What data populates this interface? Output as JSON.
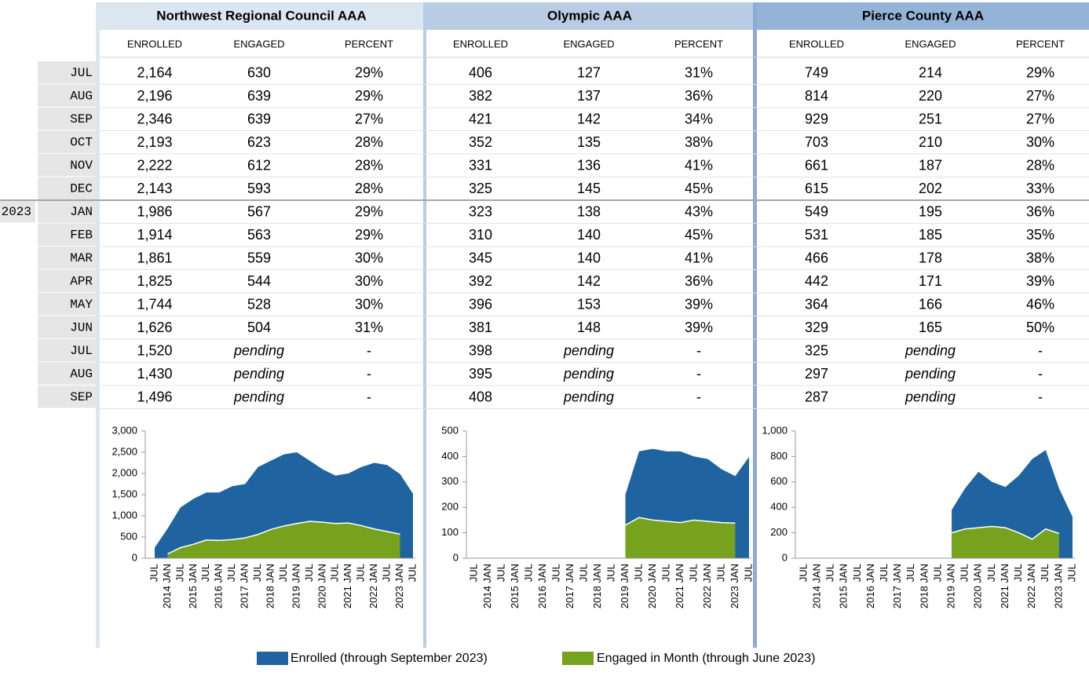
{
  "table": {
    "year": "2023",
    "months": [
      "JUL",
      "AUG",
      "SEP",
      "OCT",
      "NOV",
      "DEC",
      "JAN",
      "FEB",
      "MAR",
      "APR",
      "MAY",
      "JUN",
      "JUL",
      "AUG",
      "SEP"
    ],
    "panels": [
      {
        "name": "Northwest Regional Council AAA",
        "columns": [
          "ENROLLED",
          "ENGAGED",
          "PERCENT"
        ],
        "rows": [
          [
            "2,164",
            "630",
            "29%"
          ],
          [
            "2,196",
            "639",
            "29%"
          ],
          [
            "2,346",
            "639",
            "27%"
          ],
          [
            "2,193",
            "623",
            "28%"
          ],
          [
            "2,222",
            "612",
            "28%"
          ],
          [
            "2,143",
            "593",
            "28%"
          ],
          [
            "1,986",
            "567",
            "29%"
          ],
          [
            "1,914",
            "563",
            "29%"
          ],
          [
            "1,861",
            "559",
            "30%"
          ],
          [
            "1,825",
            "544",
            "30%"
          ],
          [
            "1,744",
            "528",
            "30%"
          ],
          [
            "1,626",
            "504",
            "31%"
          ],
          [
            "1,520",
            "pending",
            "-"
          ],
          [
            "1,430",
            "pending",
            "-"
          ],
          [
            "1,496",
            "pending",
            "-"
          ]
        ]
      },
      {
        "name": "Olympic AAA",
        "columns": [
          "ENROLLED",
          "ENGAGED",
          "PERCENT"
        ],
        "rows": [
          [
            "406",
            "127",
            "31%"
          ],
          [
            "382",
            "137",
            "36%"
          ],
          [
            "421",
            "142",
            "34%"
          ],
          [
            "352",
            "135",
            "38%"
          ],
          [
            "331",
            "136",
            "41%"
          ],
          [
            "325",
            "145",
            "45%"
          ],
          [
            "323",
            "138",
            "43%"
          ],
          [
            "310",
            "140",
            "45%"
          ],
          [
            "345",
            "140",
            "41%"
          ],
          [
            "392",
            "142",
            "36%"
          ],
          [
            "396",
            "153",
            "39%"
          ],
          [
            "381",
            "148",
            "39%"
          ],
          [
            "398",
            "pending",
            "-"
          ],
          [
            "395",
            "pending",
            "-"
          ],
          [
            "408",
            "pending",
            "-"
          ]
        ]
      },
      {
        "name": "Pierce County AAA",
        "columns": [
          "ENROLLED",
          "ENGAGED",
          "PERCENT"
        ],
        "rows": [
          [
            "749",
            "214",
            "29%"
          ],
          [
            "814",
            "220",
            "27%"
          ],
          [
            "929",
            "251",
            "27%"
          ],
          [
            "703",
            "210",
            "30%"
          ],
          [
            "661",
            "187",
            "28%"
          ],
          [
            "615",
            "202",
            "33%"
          ],
          [
            "549",
            "195",
            "36%"
          ],
          [
            "531",
            "185",
            "35%"
          ],
          [
            "466",
            "178",
            "38%"
          ],
          [
            "442",
            "171",
            "39%"
          ],
          [
            "364",
            "166",
            "46%"
          ],
          [
            "329",
            "165",
            "50%"
          ],
          [
            "325",
            "pending",
            "-"
          ],
          [
            "297",
            "pending",
            "-"
          ],
          [
            "287",
            "pending",
            "-"
          ]
        ]
      }
    ]
  },
  "chart_data": [
    {
      "type": "area",
      "categories": [
        "JUL",
        "2014 JAN",
        "JUL",
        "2015 JAN",
        "JUL",
        "2016 JAN",
        "JUL",
        "2017 JAN",
        "JUL",
        "2018 JAN",
        "JUL",
        "2019 JAN",
        "JUL",
        "2020 JAN",
        "JUL",
        "2021 JAN",
        "JUL",
        "2022 JAN",
        "JUL",
        "2023 JAN",
        "JUL"
      ],
      "ylim": [
        0,
        3000
      ],
      "yticks": [
        0,
        500,
        {
          "value": 1000,
          "label": "1,000"
        },
        {
          "value": 1500,
          "label": "1,500"
        },
        {
          "value": 2000,
          "label": "2,000"
        },
        {
          "value": 2500,
          "label": "2,500"
        },
        {
          "value": 3000,
          "label": "3,000"
        }
      ],
      "series": [
        {
          "name": "Enrolled (through September 2023)",
          "color": "#1f64a0",
          "values": [
            250,
            700,
            1200,
            1400,
            1550,
            1550,
            1700,
            1750,
            2150,
            2300,
            2450,
            2500,
            2300,
            2100,
            1950,
            2000,
            2150,
            2250,
            2200,
            1986,
            1520
          ]
        },
        {
          "name": "Engaged in Month (through June 2023)",
          "color": "#76a21e",
          "values": [
            null,
            100,
            250,
            330,
            430,
            420,
            440,
            480,
            560,
            680,
            760,
            820,
            870,
            850,
            820,
            830,
            770,
            690,
            630,
            567,
            null
          ]
        }
      ]
    },
    {
      "type": "area",
      "categories": [
        "JUL",
        "2014 JAN",
        "JUL",
        "2015 JAN",
        "JUL",
        "2016 JAN",
        "JUL",
        "2017 JAN",
        "JUL",
        "2018 JAN",
        "JUL",
        "2019 JAN",
        "JUL",
        "2020 JAN",
        "JUL",
        "2021 JAN",
        "JUL",
        "2022 JAN",
        "JUL",
        "2023 JAN",
        "JUL"
      ],
      "ylim": [
        0,
        500
      ],
      "yticks": [
        0,
        100,
        200,
        300,
        400,
        500
      ],
      "series": [
        {
          "color": "#1f64a0",
          "values": [
            null,
            null,
            null,
            null,
            null,
            null,
            null,
            null,
            null,
            null,
            null,
            250,
            420,
            430,
            420,
            420,
            400,
            390,
            350,
            323,
            398
          ]
        },
        {
          "color": "#76a21e",
          "values": [
            null,
            null,
            null,
            null,
            null,
            null,
            null,
            null,
            null,
            null,
            null,
            130,
            160,
            150,
            145,
            140,
            150,
            145,
            140,
            138,
            null
          ]
        }
      ]
    },
    {
      "type": "area",
      "categories": [
        "JUL",
        "2014 JAN",
        "JUL",
        "2015 JAN",
        "JUL",
        "2016 JAN",
        "JUL",
        "2017 JAN",
        "JUL",
        "2018 JAN",
        "JUL",
        "2019 JAN",
        "JUL",
        "2020 JAN",
        "JUL",
        "2021 JAN",
        "JUL",
        "2022 JAN",
        "JUL",
        "2023 JAN",
        "JUL"
      ],
      "ylim": [
        0,
        1000
      ],
      "yticks": [
        0,
        200,
        400,
        600,
        800,
        {
          "value": 1000,
          "label": "1,000"
        }
      ],
      "series": [
        {
          "color": "#1f64a0",
          "values": [
            null,
            null,
            null,
            null,
            null,
            null,
            null,
            null,
            null,
            null,
            null,
            380,
            550,
            680,
            600,
            560,
            650,
            780,
            850,
            549,
            325
          ]
        },
        {
          "color": "#76a21e",
          "values": [
            null,
            null,
            null,
            null,
            null,
            null,
            null,
            null,
            null,
            null,
            null,
            200,
            230,
            240,
            250,
            240,
            200,
            150,
            230,
            195,
            null
          ]
        }
      ]
    }
  ]
}
